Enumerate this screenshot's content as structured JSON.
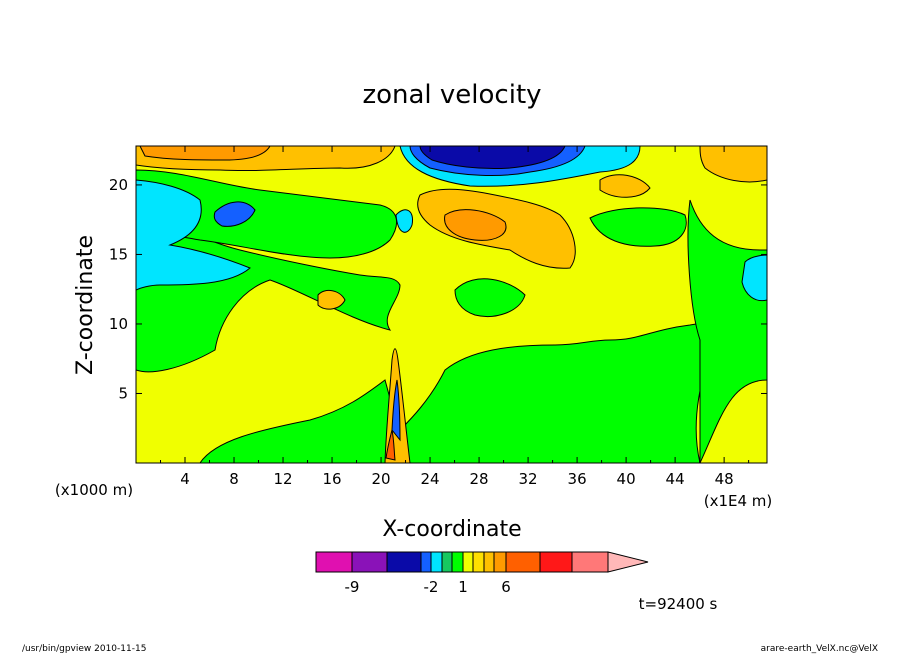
{
  "chart_data": {
    "type": "heatmap",
    "title": "zonal velocity",
    "xlabel": "X-coordinate",
    "ylabel": "Z-coordinate",
    "x_unit_label": "(x1E4 m)",
    "y_unit_label": "(x1000 m)",
    "xlim": [
      0,
      51.5
    ],
    "ylim": [
      0,
      22.8
    ],
    "x_ticks": [
      4,
      8,
      12,
      16,
      20,
      24,
      28,
      32,
      36,
      40,
      44,
      48
    ],
    "y_ticks": [
      5,
      10,
      15,
      20
    ],
    "colorbar": {
      "levels": [
        -12,
        -9,
        -6,
        -3,
        -2,
        -1,
        0,
        1,
        2,
        3,
        4,
        6,
        9,
        12,
        15
      ],
      "tick_labels": [
        -9,
        -2,
        1,
        6
      ],
      "colors": [
        "#e010b0",
        "#8a12b8",
        "#0a0aa8",
        "#1460ff",
        "#00e5ff",
        "#16c860",
        "#00ff00",
        "#f0ff00",
        "#ffe000",
        "#ffc000",
        "#ff9a00",
        "#ff6000",
        "#ff1818",
        "#ff7878",
        "#ffb8b8"
      ],
      "extend": "max"
    },
    "regions": [
      {
        "name": "background",
        "value": 0.5
      },
      {
        "name": "green-lower-band",
        "value": -0.5
      },
      {
        "name": "green-left-wedge",
        "value": -0.5
      },
      {
        "name": "green-upper-band",
        "value": -0.5
      },
      {
        "name": "cyan-left",
        "value": -1.5
      },
      {
        "name": "blue-left",
        "value": -2.5
      },
      {
        "name": "top-negative-core",
        "value": -7
      },
      {
        "name": "top-left-positive",
        "value": 4
      },
      {
        "name": "orange-center",
        "value": 3
      },
      {
        "name": "right-positive",
        "value": 2
      },
      {
        "name": "convective-plume",
        "value": 3
      }
    ],
    "annotation": "t=92400 s",
    "footer_left": "/usr/bin/gpview   2010-11-15",
    "footer_right": "arare-earth_VelX.nc@VelX"
  }
}
